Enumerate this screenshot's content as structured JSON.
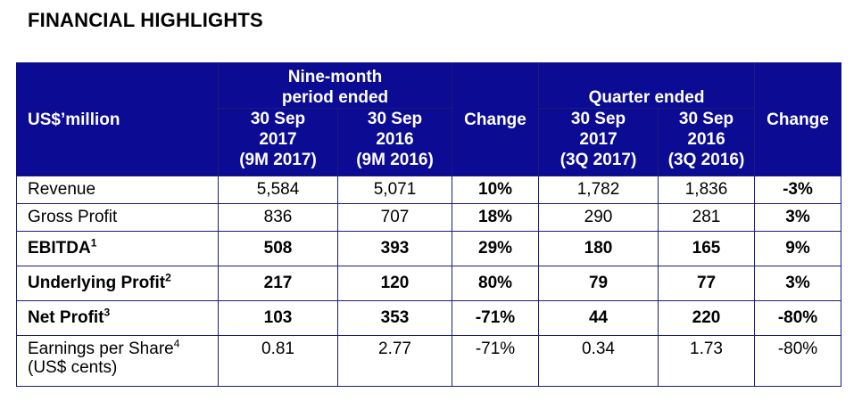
{
  "title": "FINANCIAL HIGHLIGHTS",
  "header": {
    "row_label": "US$’million",
    "nine_month_line1": "Nine-month",
    "nine_month_line2": "period ended",
    "quarter": "Quarter ended",
    "change": "Change",
    "cols": [
      {
        "l1": "30 Sep",
        "l2": "2017",
        "l3": "(9M 2017)"
      },
      {
        "l1": "30 Sep",
        "l2": "2016",
        "l3": "(9M 2016)"
      },
      {
        "l1": "30 Sep",
        "l2": "2017",
        "l3": "(3Q 2017)"
      },
      {
        "l1": "30 Sep",
        "l2": "2016",
        "l3": "(3Q 2016)"
      }
    ]
  },
  "rows": [
    {
      "label": "Revenue",
      "sup": "",
      "values": [
        "5,584",
        "5,071",
        "10%",
        "1,782",
        "1,836",
        "-3%"
      ]
    },
    {
      "label": "Gross Profit",
      "sup": "",
      "values": [
        "836",
        "707",
        "18%",
        "290",
        "281",
        "3%"
      ]
    },
    {
      "label": "EBITDA",
      "sup": "1",
      "values": [
        "508",
        "393",
        "29%",
        "180",
        "165",
        "9%"
      ]
    },
    {
      "label": "Underlying Profit",
      "sup": "2",
      "values": [
        "217",
        "120",
        "80%",
        "79",
        "77",
        "3%"
      ]
    },
    {
      "label": "Net Profit",
      "sup": "3",
      "values": [
        "103",
        "353",
        "-71%",
        "44",
        "220",
        "-80%"
      ]
    },
    {
      "label": "Earnings per Share",
      "sup": "4",
      "label_line2": "(US$ cents)",
      "values": [
        "0.81",
        "2.77",
        "-71%",
        "0.34",
        "1.73",
        "-80%"
      ]
    }
  ]
}
